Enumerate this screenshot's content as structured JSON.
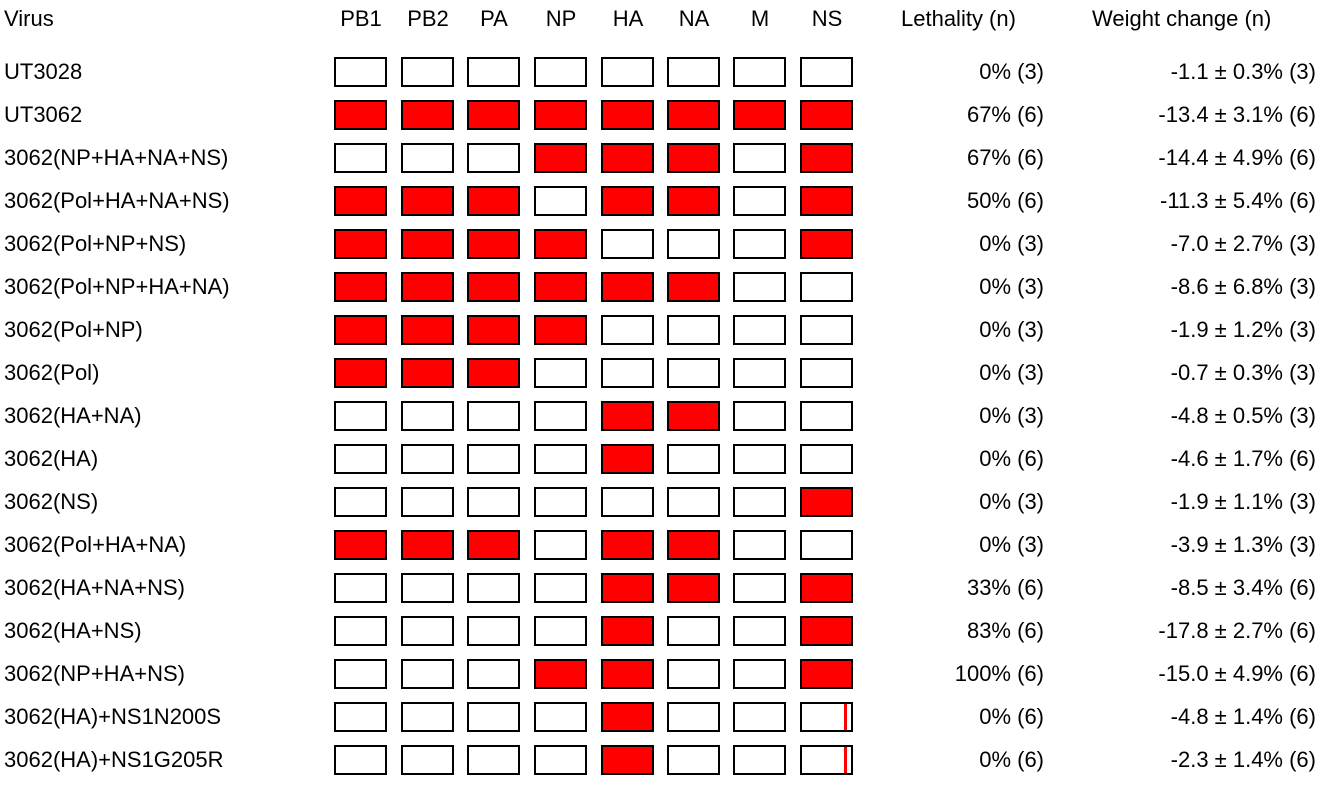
{
  "header": {
    "virus": "Virus",
    "segments": [
      "PB1",
      "PB2",
      "PA",
      "NP",
      "HA",
      "NA",
      "M",
      "NS"
    ],
    "lethality": "Lethality (n)",
    "weight": "Weight change (n)"
  },
  "colors": {
    "filled": "#ff0000",
    "empty": "#ffffff",
    "border": "#000000"
  },
  "rows": [
    {
      "virus": "UT3028",
      "segments": [
        0,
        0,
        0,
        0,
        0,
        0,
        0,
        0
      ],
      "lethality": "0% (3)",
      "weight": "-1.1 ± 0.3% (3)"
    },
    {
      "virus": "UT3062",
      "segments": [
        1,
        1,
        1,
        1,
        1,
        1,
        1,
        1
      ],
      "lethality": "67% (6)",
      "weight": "-13.4 ± 3.1% (6)"
    },
    {
      "virus": "3062(NP+HA+NA+NS)",
      "segments": [
        0,
        0,
        0,
        1,
        1,
        1,
        0,
        1
      ],
      "lethality": "67% (6)",
      "weight": "-14.4 ± 4.9% (6)"
    },
    {
      "virus": "3062(Pol+HA+NA+NS)",
      "segments": [
        1,
        1,
        1,
        0,
        1,
        1,
        0,
        1
      ],
      "lethality": "50% (6)",
      "weight": "-11.3 ± 5.4% (6)"
    },
    {
      "virus": "3062(Pol+NP+NS)",
      "segments": [
        1,
        1,
        1,
        1,
        0,
        0,
        0,
        1
      ],
      "lethality": "0% (3)",
      "weight": "-7.0 ± 2.7% (3)"
    },
    {
      "virus": "3062(Pol+NP+HA+NA)",
      "segments": [
        1,
        1,
        1,
        1,
        1,
        1,
        0,
        0
      ],
      "lethality": "0% (3)",
      "weight": "-8.6 ± 6.8% (3)"
    },
    {
      "virus": "3062(Pol+NP)",
      "segments": [
        1,
        1,
        1,
        1,
        0,
        0,
        0,
        0
      ],
      "lethality": "0% (3)",
      "weight": "-1.9 ± 1.2% (3)"
    },
    {
      "virus": "3062(Pol)",
      "segments": [
        1,
        1,
        1,
        0,
        0,
        0,
        0,
        0
      ],
      "lethality": "0% (3)",
      "weight": "-0.7 ± 0.3% (3)"
    },
    {
      "virus": "3062(HA+NA)",
      "segments": [
        0,
        0,
        0,
        0,
        1,
        1,
        0,
        0
      ],
      "lethality": "0% (3)",
      "weight": "-4.8 ± 0.5% (3)"
    },
    {
      "virus": "3062(HA)",
      "segments": [
        0,
        0,
        0,
        0,
        1,
        0,
        0,
        0
      ],
      "lethality": "0% (6)",
      "weight": "-4.6 ± 1.7% (6)"
    },
    {
      "virus": "3062(NS)",
      "segments": [
        0,
        0,
        0,
        0,
        0,
        0,
        0,
        1
      ],
      "lethality": "0% (3)",
      "weight": "-1.9 ± 1.1% (3)"
    },
    {
      "virus": "3062(Pol+HA+NA)",
      "segments": [
        1,
        1,
        1,
        0,
        1,
        1,
        0,
        0
      ],
      "lethality": "0% (3)",
      "weight": "-3.9 ± 1.3% (3)"
    },
    {
      "virus": "3062(HA+NA+NS)",
      "segments": [
        0,
        0,
        0,
        0,
        1,
        1,
        0,
        1
      ],
      "lethality": "33% (6)",
      "weight": "-8.5 ± 3.4% (6)"
    },
    {
      "virus": "3062(HA+NS)",
      "segments": [
        0,
        0,
        0,
        0,
        1,
        0,
        0,
        1
      ],
      "lethality": "83% (6)",
      "weight": "-17.8 ± 2.7% (6)"
    },
    {
      "virus": "3062(NP+HA+NS)",
      "segments": [
        0,
        0,
        0,
        1,
        1,
        0,
        0,
        1
      ],
      "lethality": "100% (6)",
      "weight": "-15.0 ± 4.9% (6)"
    },
    {
      "virus": "3062(HA)+NS1N200S",
      "segments": [
        0,
        0,
        0,
        0,
        1,
        0,
        0,
        2
      ],
      "lethality": "0% (6)",
      "weight": "-4.8 ± 1.4% (6)"
    },
    {
      "virus": "3062(HA)+NS1G205R",
      "segments": [
        0,
        0,
        0,
        0,
        1,
        0,
        0,
        2
      ],
      "lethality": "0% (6)",
      "weight": "-2.3 ± 1.4% (6)"
    }
  ]
}
